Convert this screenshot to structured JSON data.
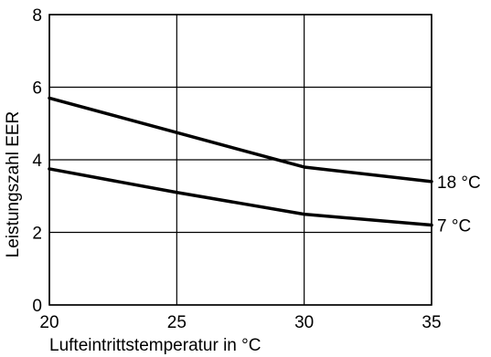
{
  "chart_data": {
    "type": "line",
    "xlabel": "Lufteintrittstemperatur in °C",
    "ylabel": "Leistungszahl EER",
    "xlim": [
      20,
      35
    ],
    "ylim": [
      0,
      8
    ],
    "xticks": [
      "20",
      "25",
      "30",
      "35"
    ],
    "yticks": [
      "0",
      "2",
      "4",
      "6",
      "8"
    ],
    "grid": true,
    "series": [
      {
        "name": "18 °C",
        "x": [
          20,
          25,
          30,
          35
        ],
        "values": [
          5.7,
          4.75,
          3.8,
          3.4
        ]
      },
      {
        "name": "7 °C",
        "x": [
          20,
          25,
          30,
          35
        ],
        "values": [
          3.75,
          3.1,
          2.5,
          2.2
        ]
      }
    ]
  }
}
